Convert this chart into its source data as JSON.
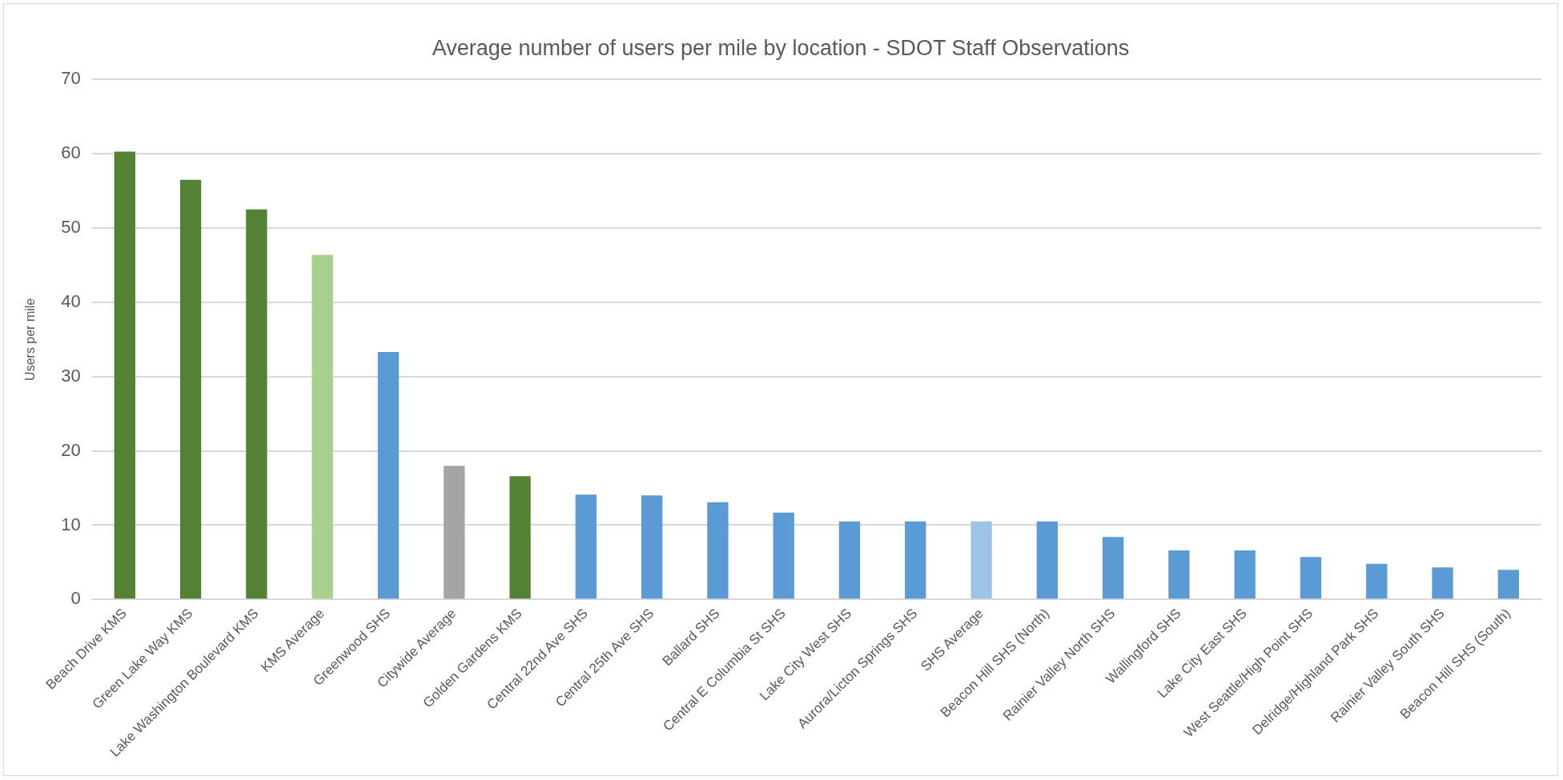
{
  "chart_data": {
    "type": "bar",
    "title": "Average number of users per mile by location - SDOT Staff Observations",
    "ylabel": "Users per mile",
    "categories": [
      "Beach Drive KMS",
      "Green Lake Way KMS",
      "Lake Washington Boulevard KMS",
      "KMS Average",
      "Greenwood SHS",
      "Citywide Average",
      "Golden Gardens KMS",
      "Central 22nd Ave SHS",
      "Central 25th Ave SHS",
      "Ballard SHS",
      "Central E Columbia St SHS",
      "Lake City West SHS",
      "Aurora/Licton Springs SHS",
      "SHS Average",
      "Beacon Hill SHS (North)",
      "Rainier Valley North SHS",
      "Wallingford SHS",
      "Lake City East SHS",
      "West Seattle/High Point SHS",
      "Delridge/Highland Park SHS",
      "Rainier Valley South SHS",
      "Beacon Hill SHS (South)"
    ],
    "values": [
      60.3,
      56.5,
      52.5,
      46.4,
      33.3,
      18.0,
      16.6,
      14.1,
      14.0,
      13.1,
      11.7,
      10.5,
      10.5,
      10.5,
      10.5,
      8.4,
      6.6,
      6.6,
      5.7,
      4.8,
      4.3,
      4.0
    ],
    "colors": [
      "#548235",
      "#548235",
      "#548235",
      "#a9d18e",
      "#5b9bd5",
      "#a5a5a5",
      "#548235",
      "#5b9bd5",
      "#5b9bd5",
      "#5b9bd5",
      "#5b9bd5",
      "#5b9bd5",
      "#5b9bd5",
      "#9dc3e6",
      "#5b9bd5",
      "#5b9bd5",
      "#5b9bd5",
      "#5b9bd5",
      "#5b9bd5",
      "#5b9bd5",
      "#5b9bd5",
      "#5b9bd5"
    ],
    "ylim": [
      0,
      70
    ],
    "yticks": [
      0,
      10,
      20,
      30,
      40,
      50,
      60,
      70
    ],
    "grid": "y",
    "legend": false
  }
}
